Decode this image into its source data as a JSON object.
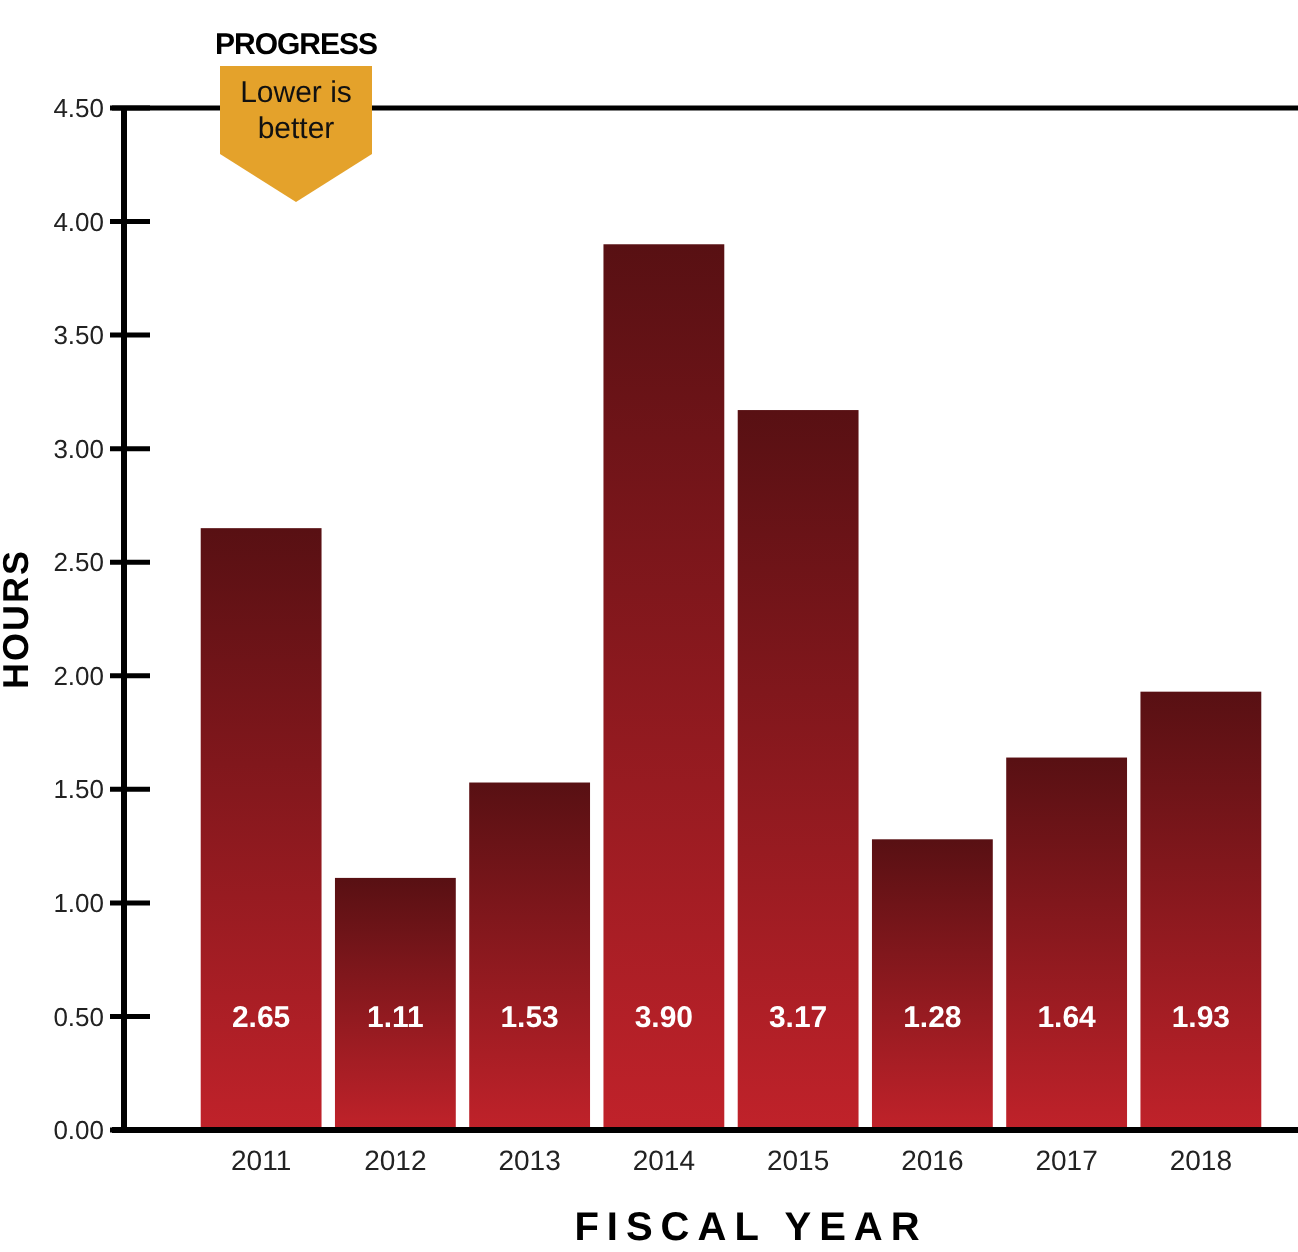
{
  "chart_data": {
    "type": "bar",
    "xlabel": "FISCAL YEAR",
    "ylabel": "HOURS",
    "categories": [
      "2011",
      "2012",
      "2013",
      "2014",
      "2015",
      "2016",
      "2017",
      "2018"
    ],
    "values": [
      2.65,
      1.11,
      1.53,
      3.9,
      3.17,
      1.28,
      1.64,
      1.93
    ],
    "value_labels": [
      "2.65",
      "1.11",
      "1.53",
      "3.90",
      "3.17",
      "1.28",
      "1.64",
      "1.93"
    ],
    "color": "#c0222a",
    "ylim": [
      0,
      4.5
    ],
    "yticks": [
      {
        "value": 0,
        "label": "0.00"
      },
      {
        "value": 0.5,
        "label": "0.50"
      },
      {
        "value": 1,
        "label": "1.00"
      },
      {
        "value": 1.5,
        "label": "1.50"
      },
      {
        "value": 2,
        "label": "2.00"
      },
      {
        "value": 2.5,
        "label": "2.50"
      },
      {
        "value": 3,
        "label": "3.00"
      },
      {
        "value": 3.5,
        "label": "3.50"
      },
      {
        "value": 4,
        "label": "4.00"
      },
      {
        "value": 4.5,
        "label": "4.50"
      }
    ],
    "grid": false,
    "annotations": [
      "PROGRESS",
      "Lower is better"
    ]
  }
}
